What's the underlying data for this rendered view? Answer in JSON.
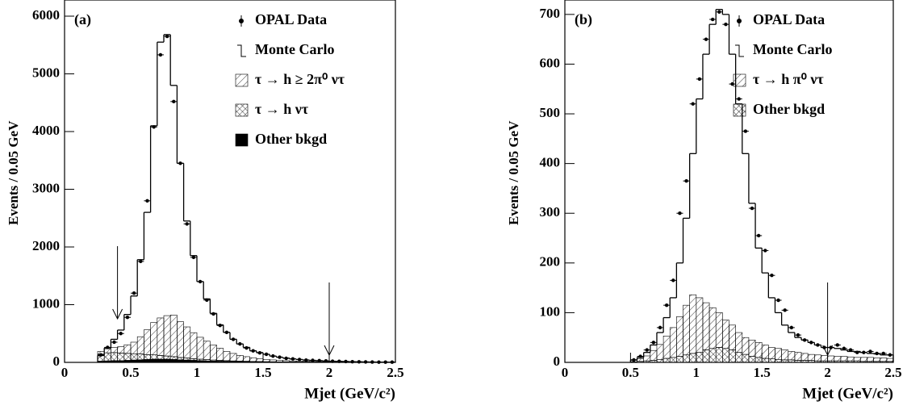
{
  "chart_data": [
    {
      "type": "histogram",
      "panel_label": "(a)",
      "y_label": "Events / 0.05 GeV",
      "x_label": "Mjet (GeV/c²)",
      "xlim": [
        0,
        2.5
      ],
      "ylim": [
        0,
        6280
      ],
      "xticks": [
        0,
        0.5,
        1,
        1.5,
        2,
        2.5
      ],
      "yticks": [
        0,
        1000,
        2000,
        3000,
        4000,
        5000,
        6000
      ],
      "legend": "upper right",
      "cuts": [
        0.4,
        2
      ],
      "bins": [
        0.25,
        0.3,
        0.35,
        0.4,
        0.45,
        0.5,
        0.55,
        0.6,
        0.65,
        0.7,
        0.75,
        0.8,
        0.85,
        0.9,
        0.95,
        1,
        1.05,
        1.1,
        1.15,
        1.2,
        1.25,
        1.3,
        1.35,
        1.4,
        1.45,
        1.5,
        1.55,
        1.6,
        1.65,
        1.7,
        1.75,
        1.8,
        1.85,
        1.9,
        1.95,
        2,
        2.05,
        2.1,
        2.15,
        2.2,
        2.25,
        2.3,
        2.35,
        2.4,
        2.45,
        2.5
      ],
      "series": [
        {
          "name": "OPAL Data",
          "style": "points",
          "color": "#000000",
          "values": [
            130,
            260,
            350,
            500,
            780,
            1200,
            1750,
            2800,
            4080,
            5330,
            5650,
            4520,
            3450,
            2400,
            1820,
            1400,
            1080,
            840,
            640,
            520,
            400,
            320,
            250,
            200,
            165,
            140,
            110,
            90,
            70,
            60,
            50,
            40,
            35,
            30,
            25,
            20,
            18,
            15,
            12,
            10,
            8,
            6,
            5,
            5,
            4
          ]
        },
        {
          "name": "Monte Carlo",
          "style": "step",
          "color": "#000000",
          "values": [
            120,
            250,
            400,
            560,
            830,
            1150,
            1780,
            2600,
            4100,
            5550,
            5680,
            4800,
            3450,
            2450,
            1850,
            1400,
            1100,
            850,
            650,
            520,
            400,
            320,
            260,
            200,
            170,
            140,
            110,
            90,
            75,
            60,
            50,
            42,
            35,
            30,
            25,
            20,
            18,
            15,
            12,
            10,
            8,
            7,
            5,
            5,
            4
          ]
        },
        {
          "name": "τ → h ≥ 2π⁰ ντ",
          "style": "hatch",
          "color": "#000000",
          "values": [
            50,
            70,
            90,
            110,
            150,
            200,
            300,
            430,
            560,
            650,
            700,
            720,
            620,
            540,
            450,
            380,
            320,
            260,
            210,
            160,
            130,
            100,
            80,
            65,
            50,
            40,
            32,
            28,
            22,
            18,
            16,
            14,
            11,
            9,
            7,
            6,
            5,
            4,
            4,
            3,
            3,
            3,
            2,
            2,
            2
          ]
        },
        {
          "name": "τ → h ντ",
          "style": "crosshatch",
          "color": "#000000",
          "values": [
            120,
            140,
            140,
            130,
            120,
            110,
            100,
            85,
            75,
            65,
            55,
            50,
            40,
            35,
            30,
            25,
            22,
            18,
            15,
            12,
            10,
            8,
            7,
            6,
            5,
            4,
            4,
            3,
            3,
            2,
            2,
            2,
            2,
            1,
            1,
            1,
            1,
            1,
            1,
            1,
            1,
            1,
            1,
            1,
            1
          ]
        },
        {
          "name": "Other bkgd",
          "style": "solid",
          "color": "#000000",
          "values": [
            20,
            25,
            30,
            30,
            35,
            40,
            45,
            50,
            55,
            55,
            55,
            50,
            45,
            40,
            35,
            30,
            25,
            22,
            20,
            18,
            15,
            13,
            12,
            10,
            9,
            8,
            7,
            6,
            5,
            5,
            4,
            4,
            3,
            3,
            3,
            2,
            2,
            2,
            2,
            2,
            2,
            2,
            2,
            2,
            2
          ]
        }
      ]
    },
    {
      "type": "histogram",
      "panel_label": "(b)",
      "y_label": "Events / 0.05 GeV",
      "x_label": "Mjet (GeV/c²)",
      "xlim": [
        0,
        2.5
      ],
      "ylim": [
        0,
        729
      ],
      "xticks": [
        0,
        0.5,
        1,
        1.5,
        2,
        2.5
      ],
      "yticks": [
        0,
        100,
        200,
        300,
        400,
        500,
        600,
        700
      ],
      "legend": "upper right",
      "cuts": [
        2
      ],
      "bins": [
        0.5,
        0.55,
        0.6,
        0.65,
        0.7,
        0.75,
        0.8,
        0.85,
        0.9,
        0.95,
        1,
        1.05,
        1.1,
        1.15,
        1.2,
        1.25,
        1.3,
        1.35,
        1.4,
        1.45,
        1.5,
        1.55,
        1.6,
        1.65,
        1.7,
        1.75,
        1.8,
        1.85,
        1.9,
        1.95,
        2,
        2.05,
        2.1,
        2.15,
        2.2,
        2.25,
        2.3,
        2.35,
        2.4,
        2.45,
        2.5
      ],
      "series": [
        {
          "name": "OPAL Data",
          "style": "points",
          "color": "#000000",
          "values": [
            5,
            12,
            25,
            40,
            70,
            115,
            165,
            300,
            365,
            520,
            570,
            650,
            690,
            705,
            680,
            560,
            530,
            465,
            310,
            255,
            225,
            175,
            125,
            105,
            70,
            55,
            45,
            40,
            35,
            30,
            30,
            35,
            28,
            25,
            20,
            20,
            22,
            18,
            18,
            15
          ]
        },
        {
          "name": "Monte Carlo",
          "style": "step",
          "color": "#000000",
          "values": [
            5,
            10,
            20,
            35,
            60,
            90,
            130,
            200,
            290,
            420,
            530,
            620,
            680,
            710,
            700,
            620,
            520,
            420,
            320,
            230,
            180,
            130,
            100,
            75,
            60,
            50,
            45,
            40,
            35,
            30,
            30,
            28,
            25,
            22,
            22,
            20,
            18,
            17,
            15,
            15
          ]
        },
        {
          "name": "τ → h π⁰ ντ",
          "style": "hatch",
          "color": "#000000",
          "values": [
            3,
            5,
            10,
            20,
            30,
            45,
            60,
            80,
            100,
            118,
            110,
            95,
            82,
            70,
            57,
            50,
            40,
            34,
            33,
            30,
            27,
            23,
            22,
            20,
            17,
            16,
            14,
            12,
            12,
            11,
            10,
            9,
            9,
            8,
            7,
            8,
            8,
            7,
            7,
            6
          ]
        },
        {
          "name": "Other bkgd",
          "style": "crosshatch",
          "color": "#000000",
          "values": [
            1,
            2,
            3,
            4,
            6,
            8,
            10,
            12,
            15,
            18,
            20,
            25,
            28,
            30,
            28,
            25,
            20,
            16,
            12,
            10,
            8,
            7,
            6,
            5,
            5,
            4,
            4,
            4,
            3,
            3,
            3,
            3,
            3,
            3,
            3,
            2,
            2,
            2,
            2,
            2
          ]
        }
      ]
    }
  ]
}
